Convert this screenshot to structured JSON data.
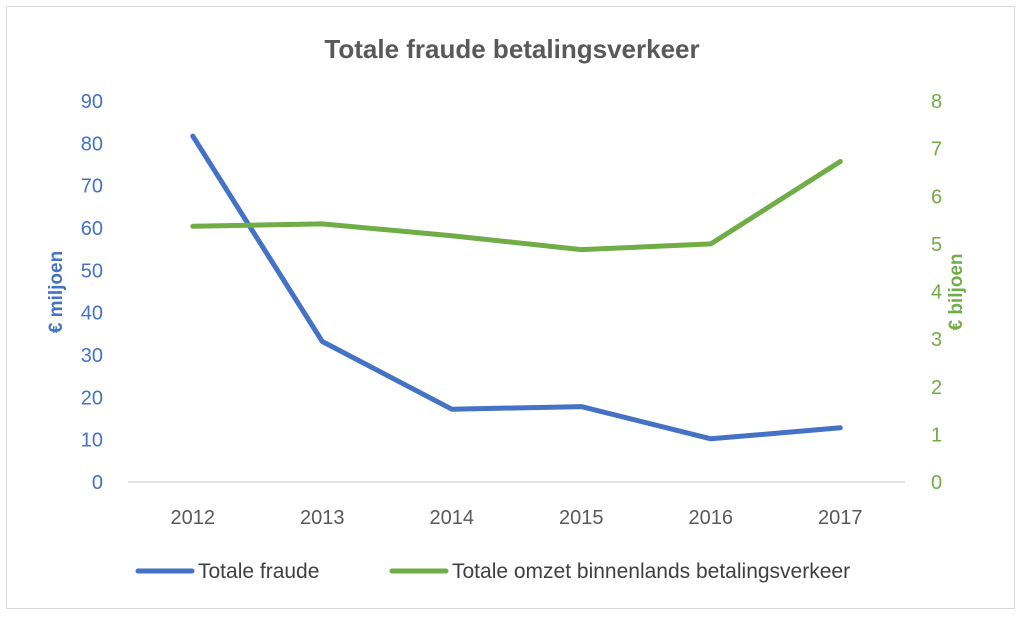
{
  "chart_data": {
    "type": "line",
    "title": "Totale fraude betalingsverkeer",
    "x": [
      "2012",
      "2013",
      "2014",
      "2015",
      "2016",
      "2017"
    ],
    "y_left": {
      "label": "€ miljoen",
      "ylim": [
        0,
        90
      ],
      "ticks": [
        "0",
        "10",
        "20",
        "30",
        "40",
        "50",
        "60",
        "70",
        "80",
        "90"
      ],
      "color": "#4472c4"
    },
    "y_right": {
      "label": "€ biljoen",
      "ylim": [
        0,
        8
      ],
      "ticks": [
        "0",
        "1",
        "2",
        "3",
        "4",
        "5",
        "6",
        "7",
        "8"
      ],
      "color": "#70ad47"
    },
    "series": [
      {
        "name": "Totale fraude",
        "axis": "left",
        "color": "#4472c4",
        "values": [
          81.7,
          33.2,
          17.2,
          17.8,
          10.2,
          12.8
        ]
      },
      {
        "name": "Totale omzet binnenlands betalingsverkeer",
        "axis": "right",
        "color": "#70ad47",
        "values": [
          5.37,
          5.42,
          5.17,
          4.88,
          5.0,
          6.73
        ]
      }
    ],
    "grid": false,
    "legend": "bottom"
  }
}
